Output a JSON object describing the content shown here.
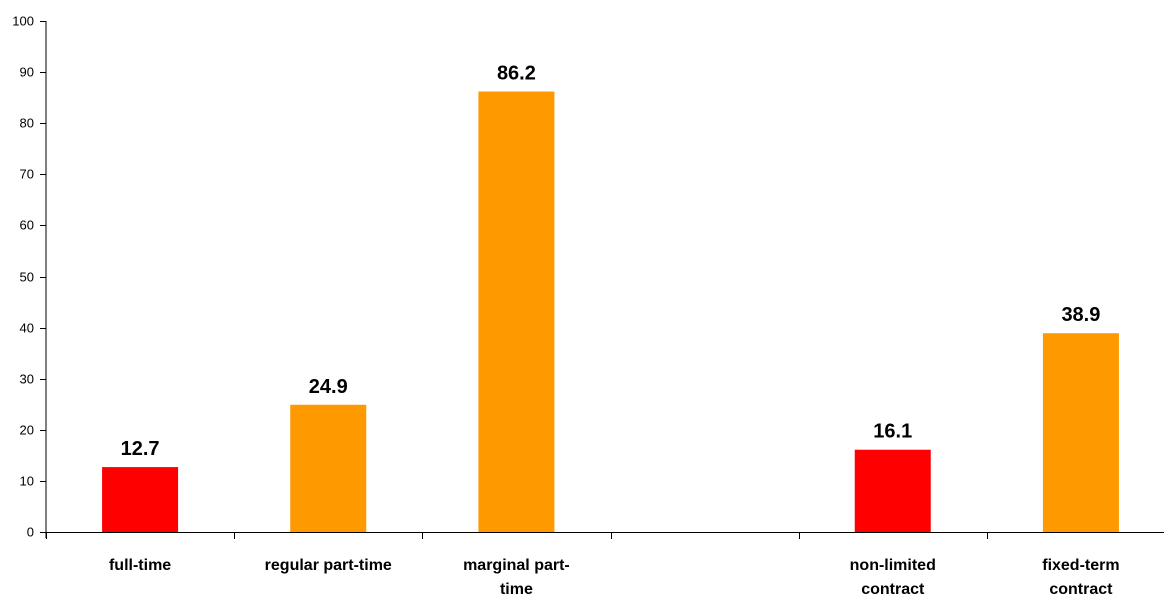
{
  "chart_data": {
    "type": "bar",
    "title": "",
    "xlabel": "",
    "ylabel": "",
    "ylim": [
      0,
      100
    ],
    "yticks": [
      0,
      10,
      20,
      30,
      40,
      50,
      60,
      70,
      80,
      90,
      100
    ],
    "grid": false,
    "categories": [
      [
        "full-time"
      ],
      [
        "regular part-time"
      ],
      [
        "marginal part-",
        "time"
      ],
      [],
      [
        "non-limited",
        "contract"
      ],
      [
        "fixed-term",
        "contract"
      ]
    ],
    "values": [
      12.7,
      24.9,
      86.2,
      null,
      16.1,
      38.9
    ],
    "value_labels": [
      "12.7",
      "24.9",
      "86.2",
      "",
      "16.1",
      "38.9"
    ],
    "bar_colors": [
      "#ff0000",
      "#ff9900",
      "#ff9900",
      null,
      "#ff0000",
      "#ff9900"
    ]
  }
}
